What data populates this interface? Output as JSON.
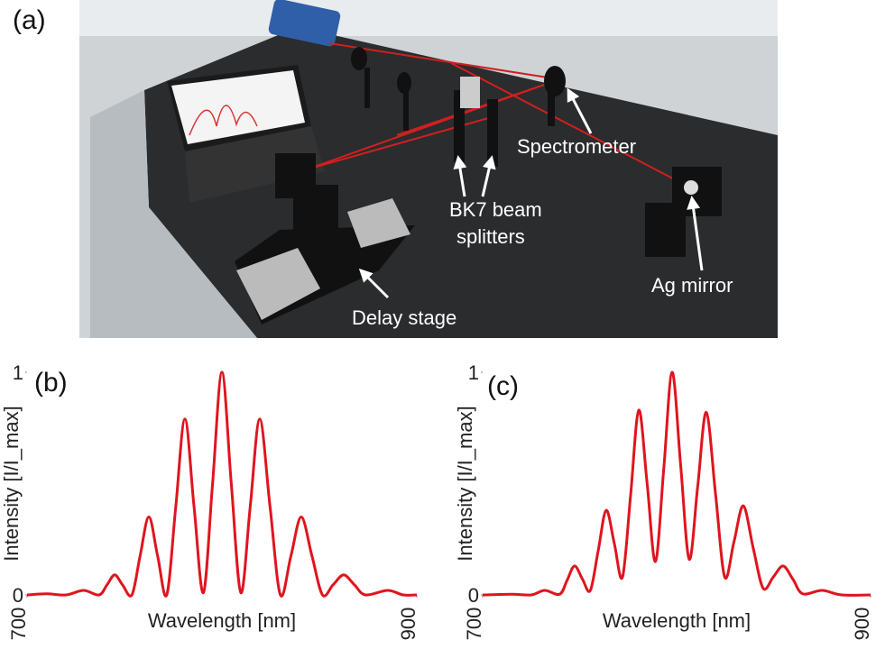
{
  "panel_a": {
    "label": "(a)",
    "annotations": {
      "spectrometer": "Spectrometer",
      "splitters_line1": "BK7 beam",
      "splitters_line2": "splitters",
      "delay_stage": "Delay stage",
      "mirror": "Ag mirror"
    }
  },
  "chart_data": [
    {
      "type": "line",
      "panel_label": "(b)",
      "x_label": "Wavelength [nm]",
      "y_label": "Intensity [I/I_max]",
      "color": "#e0141e",
      "xlim": [
        700,
        900
      ],
      "xticks": [
        700,
        900
      ],
      "ylim": [
        0,
        1
      ],
      "yticks": [
        0,
        1
      ],
      "x": [
        700,
        710,
        720,
        729,
        737,
        741,
        745,
        749,
        753.8,
        758,
        762.5,
        767,
        771.7,
        776.3,
        781,
        785.7,
        790.5,
        795.2,
        800,
        804.8,
        809.7,
        814.5,
        819.4,
        824.7,
        830,
        835.4,
        840.7,
        846.2,
        851.6,
        857,
        862.5,
        868,
        873.7,
        885,
        893,
        900
      ],
      "values": [
        0,
        0.005,
        0,
        0.02,
        0,
        0.045,
        0.09,
        0.045,
        0,
        0.175,
        0.35,
        0.175,
        0,
        0.395,
        0.79,
        0.395,
        0.01,
        0.5,
        1.0,
        0.5,
        0.01,
        0.395,
        0.79,
        0.395,
        0,
        0.175,
        0.35,
        0.175,
        0,
        0.045,
        0.09,
        0.045,
        0,
        0.02,
        0,
        0
      ]
    },
    {
      "type": "line",
      "panel_label": "(c)",
      "x_label": "Wavelength [nm]",
      "y_label": "Intensity [I/I_max]",
      "color": "#e0141e",
      "xlim": [
        700,
        900
      ],
      "xticks": [
        700,
        900
      ],
      "ylim": [
        0,
        1
      ],
      "yticks": [
        0,
        1
      ],
      "x": [
        700,
        715,
        725,
        732,
        739.7,
        743.5,
        747.4,
        751.5,
        755.5,
        759.6,
        763.7,
        767.9,
        772.1,
        776.3,
        780.5,
        784.8,
        789.1,
        793.4,
        797.7,
        802.1,
        806.5,
        810.9,
        815.3,
        820.1,
        824.8,
        829.6,
        834.4,
        839.5,
        844.6,
        849.8,
        854.9,
        860,
        865,
        875,
        885,
        900
      ],
      "values": [
        0,
        0.003,
        0,
        0.02,
        0.003,
        0.065,
        0.13,
        0.07,
        0.02,
        0.2,
        0.38,
        0.23,
        0.08,
        0.45,
        0.83,
        0.5,
        0.15,
        0.57,
        1.0,
        0.58,
        0.16,
        0.49,
        0.82,
        0.45,
        0.08,
        0.24,
        0.4,
        0.21,
        0.03,
        0.08,
        0.13,
        0.07,
        0.005,
        0.02,
        0,
        0
      ]
    }
  ]
}
